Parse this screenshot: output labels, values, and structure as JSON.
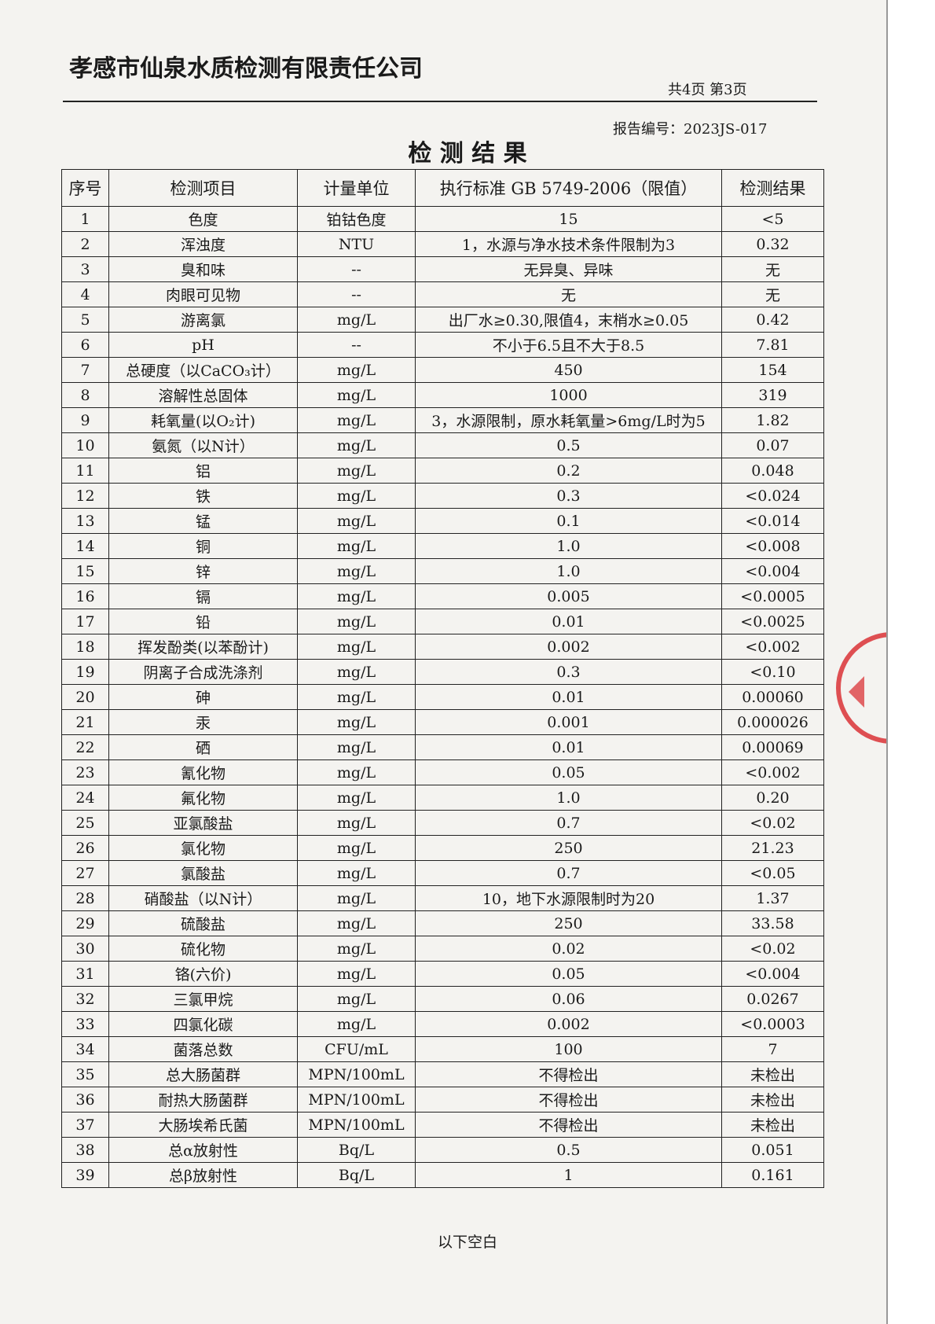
{
  "header": {
    "company": "孝感市仙泉水质检测有限责任公司",
    "page": "共4页 第3页",
    "report_no": "报告编号：2023JS-017"
  },
  "title": "检 测 结 果",
  "table": {
    "columns": [
      "序号",
      "检测项目",
      "计量单位",
      "执行标准 GB 5749-2006（限值）",
      "检测结果"
    ],
    "rows": [
      [
        "1",
        "色度",
        "铂钴色度",
        "15",
        "<5"
      ],
      [
        "2",
        "浑浊度",
        "NTU",
        "1，水源与净水技术条件限制为3",
        "0.32"
      ],
      [
        "3",
        "臭和味",
        "--",
        "无异臭、异味",
        "无"
      ],
      [
        "4",
        "肉眼可见物",
        "--",
        "无",
        "无"
      ],
      [
        "5",
        "游离氯",
        "mg/L",
        "出厂水≥0.30,限值4，末梢水≥0.05",
        "0.42"
      ],
      [
        "6",
        "pH",
        "--",
        "不小于6.5且不大于8.5",
        "7.81"
      ],
      [
        "7",
        "总硬度（以CaCO₃计）",
        "mg/L",
        "450",
        "154"
      ],
      [
        "8",
        "溶解性总固体",
        "mg/L",
        "1000",
        "319"
      ],
      [
        "9",
        "耗氧量(以O₂计)",
        "mg/L",
        "3，水源限制，原水耗氧量>6mg/L时为5",
        "1.82"
      ],
      [
        "10",
        "氨氮（以N计）",
        "mg/L",
        "0.5",
        "0.07"
      ],
      [
        "11",
        "铝",
        "mg/L",
        "0.2",
        "0.048"
      ],
      [
        "12",
        "铁",
        "mg/L",
        "0.3",
        "<0.024"
      ],
      [
        "13",
        "锰",
        "mg/L",
        "0.1",
        "<0.014"
      ],
      [
        "14",
        "铜",
        "mg/L",
        "1.0",
        "<0.008"
      ],
      [
        "15",
        "锌",
        "mg/L",
        "1.0",
        "<0.004"
      ],
      [
        "16",
        "镉",
        "mg/L",
        "0.005",
        "<0.0005"
      ],
      [
        "17",
        "铅",
        "mg/L",
        "0.01",
        "<0.0025"
      ],
      [
        "18",
        "挥发酚类(以苯酚计)",
        "mg/L",
        "0.002",
        "<0.002"
      ],
      [
        "19",
        "阴离子合成洗涤剂",
        "mg/L",
        "0.3",
        "<0.10"
      ],
      [
        "20",
        "砷",
        "mg/L",
        "0.01",
        "0.00060"
      ],
      [
        "21",
        "汞",
        "mg/L",
        "0.001",
        "0.000026"
      ],
      [
        "22",
        "硒",
        "mg/L",
        "0.01",
        "0.00069"
      ],
      [
        "23",
        "氰化物",
        "mg/L",
        "0.05",
        "<0.002"
      ],
      [
        "24",
        "氟化物",
        "mg/L",
        "1.0",
        "0.20"
      ],
      [
        "25",
        "亚氯酸盐",
        "mg/L",
        "0.7",
        "<0.02"
      ],
      [
        "26",
        "氯化物",
        "mg/L",
        "250",
        "21.23"
      ],
      [
        "27",
        "氯酸盐",
        "mg/L",
        "0.7",
        "<0.05"
      ],
      [
        "28",
        "硝酸盐（以N计）",
        "mg/L",
        "10，地下水源限制时为20",
        "1.37"
      ],
      [
        "29",
        "硫酸盐",
        "mg/L",
        "250",
        "33.58"
      ],
      [
        "30",
        "硫化物",
        "mg/L",
        "0.02",
        "<0.02"
      ],
      [
        "31",
        "铬(六价)",
        "mg/L",
        "0.05",
        "<0.004"
      ],
      [
        "32",
        "三氯甲烷",
        "mg/L",
        "0.06",
        "0.0267"
      ],
      [
        "33",
        "四氯化碳",
        "mg/L",
        "0.002",
        "<0.0003"
      ],
      [
        "34",
        "菌落总数",
        "CFU/mL",
        "100",
        "7"
      ],
      [
        "35",
        "总大肠菌群",
        "MPN/100mL",
        "不得检出",
        "未检出"
      ],
      [
        "36",
        "耐热大肠菌群",
        "MPN/100mL",
        "不得检出",
        "未检出"
      ],
      [
        "37",
        "大肠埃希氏菌",
        "MPN/100mL",
        "不得检出",
        "未检出"
      ],
      [
        "38",
        "总α放射性",
        "Bq/L",
        "0.5",
        "0.051"
      ],
      [
        "39",
        "总β放射性",
        "Bq/L",
        "1",
        "0.161"
      ]
    ]
  },
  "footer": "以下空白"
}
